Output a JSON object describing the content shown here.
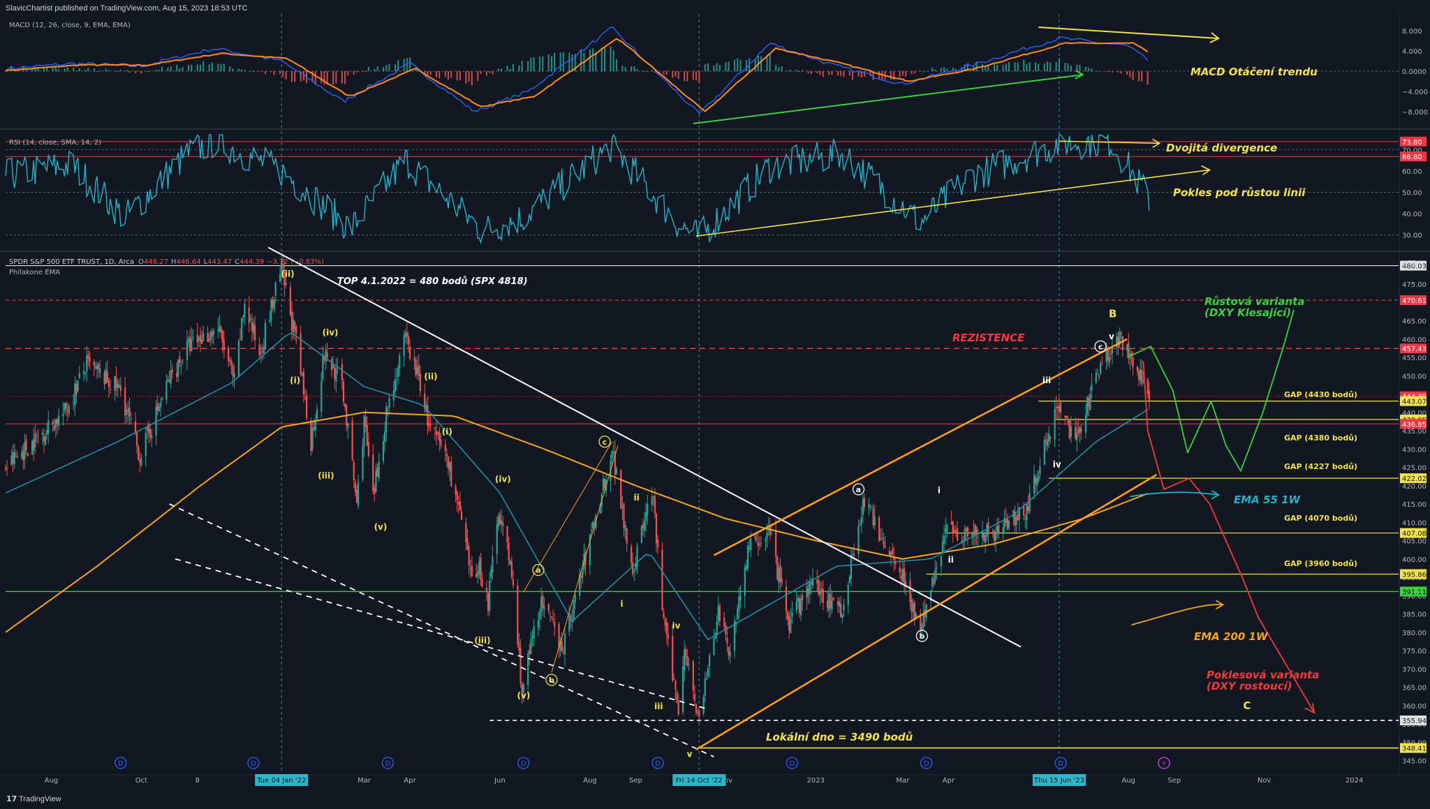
{
  "header": {
    "published": "SlavicChartist published on TradingView.com, Aug 15, 2023 18:53 UTC"
  },
  "footer": {
    "brand": "TradingView"
  },
  "colors": {
    "bg": "#131722",
    "grid": "#2a2e39",
    "axis_text": "#b2b5be",
    "up": "#26a69a",
    "down": "#ef5350",
    "macd": "#2962ff",
    "signal": "#ff8c1a",
    "rsi": "#21b3c9",
    "ema55": "#1f8fa3",
    "ema200": "#f5a623",
    "annot_yellow": "#f2e34c",
    "annot_green": "#3ad13a",
    "annot_red": "#ef3b3b",
    "channel": "#ff9f1a",
    "white": "#ffffff"
  },
  "chart_data": [
    {
      "type": "line",
      "panel": "macd",
      "title": "MACD (12, 26, close, 9, EMA, EMA)",
      "y_ticks": [
        "8.000",
        "4.000",
        "0.0000",
        "−4.000",
        "−8.000"
      ],
      "y_tick_values": [
        8,
        4,
        0,
        -4,
        -8
      ],
      "ylim": [
        -11,
        11
      ],
      "x_dates": [
        "2021-07-01",
        "2021-08-15",
        "2021-10-01",
        "2021-11-20",
        "2022-01-04",
        "2022-02-15",
        "2022-04-01",
        "2022-05-15",
        "2022-06-20",
        "2022-08-16",
        "2022-10-14",
        "2022-12-01",
        "2023-01-15",
        "2023-03-01",
        "2023-04-15",
        "2023-06-15",
        "2023-07-31",
        "2023-08-15"
      ],
      "series": [
        {
          "role": "macd",
          "values": [
            0.5,
            1.5,
            1.0,
            4.5,
            2.0,
            -6.0,
            1.5,
            -8.0,
            -4.0,
            8.5,
            -8.5,
            5.5,
            1.0,
            -2.5,
            1.0,
            6.5,
            5.0,
            2.0
          ]
        },
        {
          "role": "signal",
          "values": [
            0.2,
            1.2,
            1.2,
            3.5,
            2.5,
            -5.0,
            0.5,
            -7.0,
            -5.0,
            6.5,
            -8.0,
            4.5,
            1.5,
            -2.0,
            0.5,
            5.5,
            5.5,
            3.0
          ]
        }
      ],
      "annotations": [
        "MACD Otáčení trendu"
      ]
    },
    {
      "type": "line",
      "panel": "rsi",
      "title": "RSI (14, close, SMA, 14, 2)",
      "y_ticks": [
        "70.00",
        "60.00",
        "50.00",
        "40.00",
        "30.00"
      ],
      "y_tick_values": [
        70,
        60,
        50,
        40,
        30
      ],
      "ylim": [
        24,
        78
      ],
      "badges": [
        {
          "label": "73.80",
          "value": 73.8
        },
        {
          "label": "66.80",
          "value": 66.8
        }
      ],
      "x_dates": [
        "2021-07-01",
        "2021-08-15",
        "2021-09-20",
        "2021-11-01",
        "2021-11-20",
        "2022-01-04",
        "2022-02-20",
        "2022-03-29",
        "2022-05-20",
        "2022-06-16",
        "2022-08-16",
        "2022-09-30",
        "2022-10-14",
        "2022-12-01",
        "2023-01-20",
        "2023-03-13",
        "2023-04-15",
        "2023-06-15",
        "2023-07-20",
        "2023-08-15"
      ],
      "values": [
        58,
        63,
        38,
        68,
        74,
        60,
        33,
        65,
        32,
        38,
        72,
        35,
        29,
        62,
        68,
        36,
        57,
        73,
        74,
        47
      ],
      "annotations": [
        "Dvojitá divergence",
        "Pokles pod růstou linii"
      ]
    },
    {
      "type": "candlestick",
      "panel": "price",
      "title": "SPDR S&P 500 ETF TRUST, 1D, Arca",
      "legend_ohlc": {
        "O": "446.27",
        "H": "446.64",
        "L": "443.47",
        "C": "444.39",
        "change": "−3.72 (−0.83%)"
      },
      "indicator_label": "Philakone EMA",
      "currency": "USD",
      "y_ticks": [
        "475.00",
        "465.00",
        "460.00",
        "455.00",
        "450.00",
        "445.00",
        "440.00",
        "435.00",
        "430.00",
        "425.00",
        "420.00",
        "415.00",
        "410.00",
        "405.00",
        "400.00",
        "395.00",
        "390.00",
        "385.00",
        "380.00",
        "375.00",
        "370.00",
        "365.00",
        "360.00",
        "355.00",
        "350.00",
        "345.00"
      ],
      "y_tick_values": [
        475,
        465,
        460,
        455,
        450,
        445,
        440,
        435,
        430,
        425,
        420,
        415,
        410,
        405,
        400,
        395,
        390,
        385,
        380,
        375,
        370,
        365,
        360,
        355,
        350,
        345
      ],
      "ylim": [
        343,
        483
      ],
      "x_axis_labels": [
        {
          "label": "Aug",
          "date": "2021-08-01"
        },
        {
          "label": "Oct",
          "date": "2021-10-01"
        },
        {
          "label": "8",
          "date": "2021-11-08"
        },
        {
          "label": "Mar",
          "date": "2022-03-01"
        },
        {
          "label": "Apr",
          "date": "2022-04-01"
        },
        {
          "label": "Jun",
          "date": "2022-06-01"
        },
        {
          "label": "Aug",
          "date": "2022-08-01"
        },
        {
          "label": "Sep",
          "date": "2022-09-01"
        },
        {
          "label": "Nov",
          "date": "2022-11-01"
        },
        {
          "label": "2023",
          "date": "2023-01-01"
        },
        {
          "label": "Mar",
          "date": "2023-03-01"
        },
        {
          "label": "Apr",
          "date": "2023-04-01"
        },
        {
          "label": "Aug",
          "date": "2023-08-01"
        },
        {
          "label": "Sep",
          "date": "2023-09-01"
        },
        {
          "label": "Nov",
          "date": "2023-11-01"
        },
        {
          "label": "2024",
          "date": "2024-01-01"
        }
      ],
      "x_highlight_labels": [
        {
          "label": "Tue 04 Jan '22",
          "date": "2022-01-04"
        },
        {
          "label": "Fri 14 Oct '22",
          "date": "2022-10-14"
        },
        {
          "label": "Thu 15 Jun '23",
          "date": "2023-06-15"
        }
      ],
      "anchors": {
        "dates": [
          "2021-07-01",
          "2021-08-10",
          "2021-08-25",
          "2021-09-17",
          "2021-09-30",
          "2021-10-20",
          "2021-11-02",
          "2021-11-22",
          "2021-12-03",
          "2021-12-10",
          "2021-12-20",
          "2022-01-04",
          "2022-01-14",
          "2022-01-24",
          "2022-02-02",
          "2022-02-14",
          "2022-02-24",
          "2022-03-01",
          "2022-03-07",
          "2022-03-16",
          "2022-03-29",
          "2022-04-08",
          "2022-04-14",
          "2022-04-26",
          "2022-05-06",
          "2022-05-12",
          "2022-05-18",
          "2022-05-24",
          "2022-05-31",
          "2022-06-09",
          "2022-06-16",
          "2022-06-28",
          "2022-07-14",
          "2022-08-16",
          "2022-08-30",
          "2022-09-12",
          "2022-09-20",
          "2022-09-30",
          "2022-10-04",
          "2022-10-14",
          "2022-10-27",
          "2022-11-03",
          "2022-11-16",
          "2022-11-30",
          "2022-12-14",
          "2022-12-28",
          "2023-01-19",
          "2023-02-02",
          "2023-02-16",
          "2023-03-01",
          "2023-03-13",
          "2023-03-30",
          "2023-04-20",
          "2023-05-05",
          "2023-05-24",
          "2023-06-15",
          "2023-06-26",
          "2023-07-14",
          "2023-07-27",
          "2023-08-15"
        ],
        "values": [
          425,
          440,
          453,
          446,
          428,
          449,
          458,
          463,
          448,
          470,
          456,
          479,
          459,
          432,
          456,
          448,
          415,
          438,
          416,
          440,
          460,
          448,
          436,
          428,
          410,
          395,
          398,
          388,
          414,
          396,
          364,
          388,
          376,
          430,
          397,
          419,
          383,
          359,
          377,
          356,
          386,
          374,
          402,
          408,
          382,
          393,
          386,
          416,
          405,
          396,
          380,
          408,
          407,
          408,
          414,
          443,
          431,
          455,
          460,
          444
        ]
      },
      "ema55": {
        "dates": [
          "2021-07-01",
          "2021-09-15",
          "2021-12-01",
          "2022-01-10",
          "2022-03-01",
          "2022-04-10",
          "2022-06-01",
          "2022-07-20",
          "2022-09-10",
          "2022-10-20",
          "2023-01-15",
          "2023-03-20",
          "2023-05-15",
          "2023-07-10",
          "2023-08-15"
        ],
        "values": [
          418,
          432,
          448,
          462,
          447,
          442,
          418,
          383,
          402,
          378,
          398,
          400,
          412,
          432,
          441
        ]
      },
      "ema200": {
        "dates": [
          "2021-07-01",
          "2021-09-01",
          "2021-11-10",
          "2022-01-04",
          "2022-03-01",
          "2022-05-01",
          "2022-07-01",
          "2022-09-01",
          "2022-11-01",
          "2023-01-01",
          "2023-03-01",
          "2023-05-01",
          "2023-07-01",
          "2023-08-15"
        ],
        "values": [
          380,
          398,
          420,
          436,
          440,
          439,
          430,
          420,
          411,
          405,
          400,
          404,
          411,
          418
        ]
      },
      "price_badges": [
        {
          "label": "480.03",
          "value": 480.03,
          "color": "#e0e0e0"
        },
        {
          "label": "470.61",
          "value": 470.61,
          "color": "#f23645"
        },
        {
          "label": "457.43",
          "value": 457.43,
          "color": "#f23645"
        },
        {
          "label": "444.39",
          "value": 444.39,
          "color": "#f23645"
        },
        {
          "label": "443.07",
          "value": 443.07,
          "color": "#f2e34c"
        },
        {
          "label": "438.05",
          "value": 438.05,
          "color": "#f2e34c"
        },
        {
          "label": "436.85",
          "value": 436.85,
          "color": "#f23645"
        },
        {
          "label": "422.02",
          "value": 422.02,
          "color": "#f2e34c"
        },
        {
          "label": "407.08",
          "value": 407.08,
          "color": "#f2e34c"
        },
        {
          "label": "395.86",
          "value": 395.86,
          "color": "#f2e34c"
        },
        {
          "label": "391.11",
          "value": 391.11,
          "color": "#3ad13a"
        },
        {
          "label": "355.94",
          "value": 355.94,
          "color": "#e0e0e0"
        },
        {
          "label": "348.41",
          "value": 348.41,
          "color": "#f2e34c"
        }
      ],
      "annotations": {
        "top": "TOP 4.1.2022 = 480 bodů (SPX 4818)",
        "resistance": "REZISTENCE",
        "bull_line1": "Růstová varianta",
        "bull_line2": "(DXY Klesající)",
        "bear_line1": "Poklesová varianta",
        "bear_line2": "(DXY rostoucí)",
        "ema55": "EMA 55 1W",
        "ema200": "EMA 200 1W",
        "local_low": "Lokální dno = 3490 bodů",
        "gap1": "GAP (4430 bodů)",
        "gap2": "GAP (4380 bodů)",
        "gap3": "GAP (4227 bodů)",
        "gap4": "GAP (4070 bodů)",
        "gap5": "GAP (3960 bodů)"
      },
      "wave_labels": [
        {
          "t": "(ii)",
          "d": "2022-01-06",
          "v": 477
        },
        {
          "t": "(i)",
          "d": "2022-01-12",
          "v": 448
        },
        {
          "t": "(iv)",
          "d": "2022-02-03",
          "v": 461
        },
        {
          "t": "(iii)",
          "d": "2022-01-31",
          "v": 422
        },
        {
          "t": "(v)",
          "d": "2022-03-10",
          "v": 408
        },
        {
          "t": "(ii)",
          "d": "2022-04-13",
          "v": 449
        },
        {
          "t": "(i)",
          "d": "2022-04-25",
          "v": 434
        },
        {
          "t": "(iv)",
          "d": "2022-05-31",
          "v": 421
        },
        {
          "t": "(iii)",
          "d": "2022-05-17",
          "v": 377
        },
        {
          "t": "(v)",
          "d": "2022-06-15",
          "v": 362
        },
        {
          "t": "ii",
          "d": "2022-09-02",
          "v": 416
        },
        {
          "t": "i",
          "d": "2022-08-24",
          "v": 387
        },
        {
          "t": "iv",
          "d": "2022-09-28",
          "v": 381
        },
        {
          "t": "iii",
          "d": "2022-09-16",
          "v": 359
        },
        {
          "t": "v",
          "d": "2022-10-08",
          "v": 346
        },
        {
          "t": "i",
          "d": "2023-03-27",
          "v": 418
        },
        {
          "t": "ii",
          "d": "2023-04-03",
          "v": 399
        },
        {
          "t": "iii",
          "d": "2023-06-06",
          "v": 448
        },
        {
          "t": "iv",
          "d": "2023-06-13",
          "v": 425
        },
        {
          "t": "v",
          "d": "2023-07-21",
          "v": 460
        },
        {
          "t": "B",
          "d": "2023-07-21",
          "v": 466
        },
        {
          "t": "C",
          "d": "2023-10-20",
          "v": 359
        }
      ],
      "circle_labels": [
        {
          "t": "c",
          "d": "2022-08-11",
          "v": 432
        },
        {
          "t": "a",
          "d": "2022-06-27",
          "v": 397
        },
        {
          "t": "b",
          "d": "2022-07-06",
          "v": 367
        },
        {
          "t": "a",
          "d": "2023-01-30",
          "v": 419
        },
        {
          "t": "b",
          "d": "2023-03-14",
          "v": 379
        },
        {
          "t": "c",
          "d": "2023-07-13",
          "v": 458
        }
      ],
      "event_markers": [
        {
          "t": "D",
          "d": "2021-09-17"
        },
        {
          "t": "D",
          "d": "2021-12-16"
        },
        {
          "t": "D",
          "d": "2022-03-17"
        },
        {
          "t": "D",
          "d": "2022-06-17"
        },
        {
          "t": "D",
          "d": "2022-09-16"
        },
        {
          "t": "D",
          "d": "2022-12-16"
        },
        {
          "t": "D",
          "d": "2023-03-17"
        },
        {
          "t": "D",
          "d": "2023-06-16"
        },
        {
          "t": "⚡",
          "d": "2023-08-25"
        }
      ]
    }
  ]
}
